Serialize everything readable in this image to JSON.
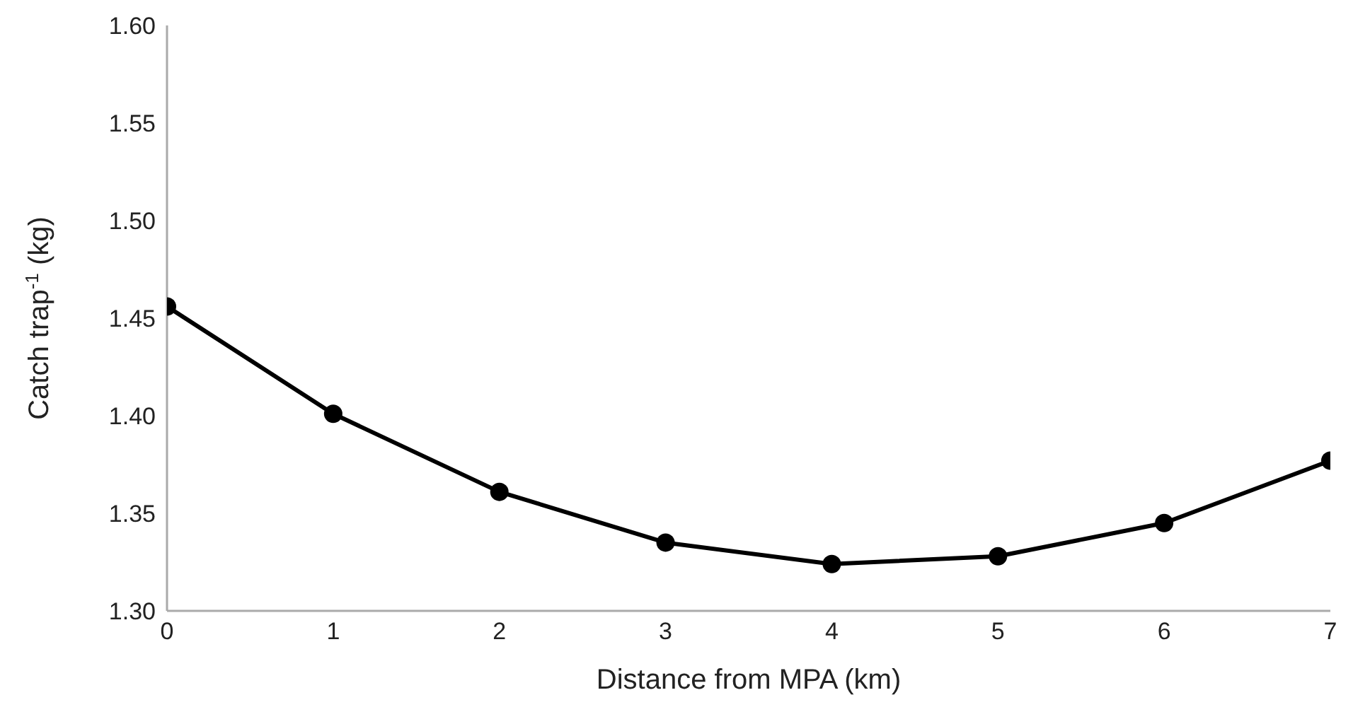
{
  "chart_data": {
    "type": "line",
    "xlabel": "Distance from MPA (km)",
    "ylabel": "Catch trap$^{-1}$ (kg)",
    "x": [
      0,
      1,
      2,
      3,
      4,
      5,
      6,
      7
    ],
    "series": [
      {
        "color": "#000000",
        "values": [
          1.456,
          1.401,
          1.361,
          1.335,
          1.324,
          1.328,
          1.345,
          1.377
        ]
      }
    ],
    "xlim": [
      0,
      7
    ],
    "xticks": [
      0,
      1,
      2,
      3,
      4,
      5,
      6,
      7
    ],
    "ylim": [
      1.3,
      1.6
    ],
    "yticks": [
      {
        "value": 1.3,
        "label": "1.30"
      },
      {
        "value": 1.35,
        "label": "1.35"
      },
      {
        "value": 1.4,
        "label": "1.40"
      },
      {
        "value": 1.45,
        "label": "1.45"
      },
      {
        "value": 1.5,
        "label": "1.50"
      },
      {
        "value": 1.55,
        "label": "1.55"
      },
      {
        "value": 1.6,
        "label": "1.60"
      }
    ],
    "grid": false,
    "legend": false,
    "marker": "circle",
    "line_style": "solid"
  }
}
